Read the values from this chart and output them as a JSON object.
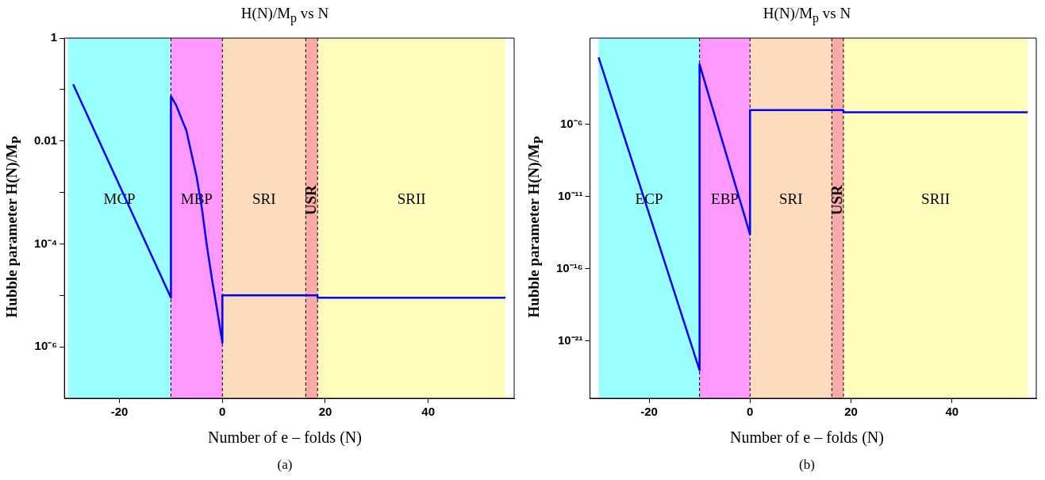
{
  "chart_data": [
    {
      "type": "line",
      "title": "H(N)/M$_{p}$ vs N",
      "xlabel": "Number of e – folds (N)",
      "ylabel": "Hubble parameter H(N)/M$_{P}$",
      "annotations": [
        "(a)"
      ],
      "log": "y",
      "marker": "none",
      "xlim": [
        -30.7,
        56.7
      ],
      "ylim": [
        1e-07,
        1
      ],
      "xticks": [
        -20,
        0,
        20,
        40
      ],
      "yticks": [
        1,
        {
          "value": 0.1,
          "label": null
        },
        0.01,
        {
          "value": 0.001,
          "label": null
        },
        {
          "value": 0.0001,
          "label": "10⁻⁴"
        },
        {
          "value": 1e-05,
          "label": null
        },
        {
          "value": 1e-06,
          "label": "10⁻⁶"
        }
      ],
      "bands": [
        {
          "axis": "x",
          "from": -30,
          "to": -10,
          "label": "MCP",
          "color": "#99ffff"
        },
        {
          "axis": "x",
          "from": -10,
          "to": 0,
          "label": "MBP",
          "color": "#ff99ff"
        },
        {
          "axis": "x",
          "from": 0,
          "to": 16.2,
          "label": "SRI",
          "color": "#fcdcbc"
        },
        {
          "axis": "x",
          "from": 16.2,
          "to": 18.5,
          "label": "USR",
          "color": "#fcaaa8"
        },
        {
          "axis": "x",
          "from": 18.5,
          "to": 55,
          "label": "SRII",
          "color": "#fffcbc"
        }
      ],
      "ref_lines": [
        {
          "axis": "x",
          "value": -10,
          "color": "#000000",
          "line_style": "dashed"
        },
        {
          "axis": "x",
          "value": 0,
          "color": "#000000",
          "line_style": "dashed"
        },
        {
          "axis": "x",
          "value": 16.2,
          "color": "#000000",
          "line_style": "dashed"
        },
        {
          "axis": "x",
          "value": 18.5,
          "color": "#000000",
          "line_style": "dashed"
        }
      ],
      "series": [
        {
          "type": "line",
          "color": "#0000ff",
          "x": [
            -29,
            -10,
            -10,
            -9,
            -8,
            -7,
            -6,
            -5,
            -4,
            -3,
            -2,
            -1,
            0,
            0,
            18.5,
            18.5,
            55
          ],
          "values": [
            0.126,
            9e-06,
            0.074,
            0.05,
            0.028,
            0.016,
            0.0056,
            0.002,
            0.0005,
            9e-05,
            2e-05,
            5e-06,
            1.2e-06,
            1e-05,
            1e-05,
            9e-06,
            9e-06
          ]
        }
      ]
    },
    {
      "type": "line",
      "title": "H(N)/M$_{p}$ vs N",
      "xlabel": "Number of e – folds (N)",
      "ylabel": "Hubble parameter H(N)/M$_{P}$",
      "annotations": [
        "(b)"
      ],
      "log": "y",
      "marker": "none",
      "xlim": [
        -31.7,
        56.7
      ],
      "ylim": [
        1e-25,
        1
      ],
      "xticks": [
        -20,
        0,
        20,
        40
      ],
      "yticks": [
        {
          "value": 1e-06,
          "label": "10⁻⁶"
        },
        {
          "value": 1e-11,
          "label": "10⁻¹¹"
        },
        {
          "value": 1e-16,
          "label": "10⁻¹⁶"
        },
        {
          "value": 1e-21,
          "label": "10⁻²¹"
        }
      ],
      "bands": [
        {
          "axis": "x",
          "from": -30,
          "to": -10,
          "label": "ECP",
          "color": "#99ffff"
        },
        {
          "axis": "x",
          "from": -10,
          "to": 0,
          "label": "EBP",
          "color": "#ff99ff"
        },
        {
          "axis": "x",
          "from": 0,
          "to": 16.2,
          "label": "SRI",
          "color": "#fcdcbc"
        },
        {
          "axis": "x",
          "from": 16.2,
          "to": 18.5,
          "label": "USR",
          "color": "#fcaaa8"
        },
        {
          "axis": "x",
          "from": 18.5,
          "to": 55,
          "label": "SRII",
          "color": "#fffcbc"
        }
      ],
      "ref_lines": [
        {
          "axis": "x",
          "value": -10,
          "color": "#000000",
          "line_style": "dashed"
        },
        {
          "axis": "x",
          "value": 0,
          "color": "#000000",
          "line_style": "dashed"
        },
        {
          "axis": "x",
          "value": 16.2,
          "color": "#000000",
          "line_style": "dashed"
        },
        {
          "axis": "x",
          "value": 18.5,
          "color": "#000000",
          "line_style": "dashed"
        }
      ],
      "series": [
        {
          "type": "line",
          "color": "#0000ff",
          "x": [
            -30,
            -10,
            -10,
            0,
            0,
            18.5,
            18.5,
            55
          ],
          "values": [
            0.046,
            9e-24,
            0.015,
            2.4e-14,
            1e-05,
            1e-05,
            7e-06,
            7e-06
          ]
        }
      ]
    }
  ]
}
